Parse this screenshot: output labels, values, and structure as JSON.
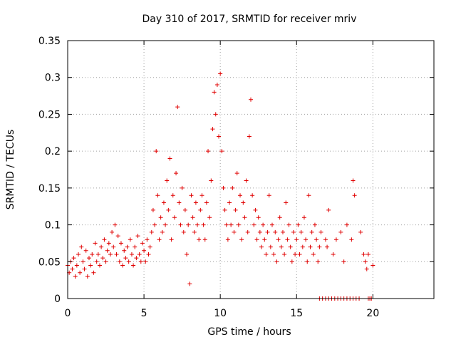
{
  "chart_data": {
    "type": "scatter",
    "title": "Day 310 of 2017, SRMTID for receiver mriv",
    "xlabel": "GPS time / hours",
    "ylabel": "SRMTID / TECUs",
    "xlim": [
      0,
      24
    ],
    "ylim": [
      0,
      0.35
    ],
    "xticks": [
      0,
      5,
      10,
      15,
      20
    ],
    "yticks": [
      0,
      0.05,
      0.1,
      0.15,
      0.2,
      0.25,
      0.3,
      0.35
    ],
    "xtick_labels": [
      "0",
      "5",
      "10",
      "15",
      "20"
    ],
    "ytick_labels": [
      "0",
      "0.05",
      "0.1",
      "0.15",
      "0.2",
      "0.25",
      "0.3",
      "0.35"
    ],
    "grid": true,
    "marker": "+",
    "series": [
      {
        "color": "#e00000",
        "points": [
          [
            0.0,
            0.045
          ],
          [
            0.1,
            0.035
          ],
          [
            0.2,
            0.05
          ],
          [
            0.3,
            0.04
          ],
          [
            0.4,
            0.055
          ],
          [
            0.5,
            0.03
          ],
          [
            0.6,
            0.045
          ],
          [
            0.7,
            0.06
          ],
          [
            0.8,
            0.035
          ],
          [
            0.9,
            0.07
          ],
          [
            1.0,
            0.05
          ],
          [
            1.1,
            0.04
          ],
          [
            1.2,
            0.065
          ],
          [
            1.3,
            0.03
          ],
          [
            1.4,
            0.055
          ],
          [
            1.5,
            0.045
          ],
          [
            1.6,
            0.06
          ],
          [
            1.7,
            0.035
          ],
          [
            1.8,
            0.075
          ],
          [
            1.9,
            0.05
          ],
          [
            2.0,
            0.06
          ],
          [
            2.1,
            0.045
          ],
          [
            2.2,
            0.07
          ],
          [
            2.3,
            0.055
          ],
          [
            2.4,
            0.08
          ],
          [
            2.5,
            0.05
          ],
          [
            2.6,
            0.065
          ],
          [
            2.7,
            0.075
          ],
          [
            2.8,
            0.06
          ],
          [
            2.9,
            0.09
          ],
          [
            3.0,
            0.07
          ],
          [
            3.1,
            0.1
          ],
          [
            3.2,
            0.06
          ],
          [
            3.3,
            0.085
          ],
          [
            3.4,
            0.05
          ],
          [
            3.5,
            0.075
          ],
          [
            3.6,
            0.045
          ],
          [
            3.7,
            0.065
          ],
          [
            3.8,
            0.055
          ],
          [
            3.9,
            0.07
          ],
          [
            4.0,
            0.05
          ],
          [
            4.1,
            0.08
          ],
          [
            4.2,
            0.06
          ],
          [
            4.3,
            0.045
          ],
          [
            4.4,
            0.07
          ],
          [
            4.5,
            0.055
          ],
          [
            4.6,
            0.085
          ],
          [
            4.7,
            0.06
          ],
          [
            4.8,
            0.05
          ],
          [
            4.9,
            0.075
          ],
          [
            5.0,
            0.065
          ],
          [
            5.1,
            0.05
          ],
          [
            5.2,
            0.08
          ],
          [
            5.3,
            0.06
          ],
          [
            5.4,
            0.07
          ],
          [
            5.5,
            0.09
          ],
          [
            5.6,
            0.12
          ],
          [
            5.7,
            0.1
          ],
          [
            5.8,
            0.2
          ],
          [
            5.9,
            0.14
          ],
          [
            6.0,
            0.08
          ],
          [
            6.1,
            0.11
          ],
          [
            6.2,
            0.09
          ],
          [
            6.3,
            0.13
          ],
          [
            6.4,
            0.1
          ],
          [
            6.5,
            0.16
          ],
          [
            6.6,
            0.12
          ],
          [
            6.7,
            0.19
          ],
          [
            6.8,
            0.08
          ],
          [
            6.9,
            0.14
          ],
          [
            7.0,
            0.11
          ],
          [
            7.1,
            0.17
          ],
          [
            7.2,
            0.26
          ],
          [
            7.3,
            0.13
          ],
          [
            7.4,
            0.1
          ],
          [
            7.5,
            0.15
          ],
          [
            7.6,
            0.09
          ],
          [
            7.7,
            0.12
          ],
          [
            7.8,
            0.06
          ],
          [
            7.9,
            0.1
          ],
          [
            8.0,
            0.02
          ],
          [
            8.1,
            0.14
          ],
          [
            8.2,
            0.11
          ],
          [
            8.3,
            0.09
          ],
          [
            8.4,
            0.13
          ],
          [
            8.5,
            0.1
          ],
          [
            8.6,
            0.08
          ],
          [
            8.7,
            0.12
          ],
          [
            8.8,
            0.14
          ],
          [
            8.9,
            0.1
          ],
          [
            9.0,
            0.08
          ],
          [
            9.1,
            0.13
          ],
          [
            9.2,
            0.2
          ],
          [
            9.3,
            0.11
          ],
          [
            9.4,
            0.16
          ],
          [
            9.5,
            0.23
          ],
          [
            9.6,
            0.28
          ],
          [
            9.7,
            0.25
          ],
          [
            9.8,
            0.29
          ],
          [
            9.9,
            0.22
          ],
          [
            10.0,
            0.305
          ],
          [
            10.1,
            0.2
          ],
          [
            10.2,
            0.15
          ],
          [
            10.3,
            0.12
          ],
          [
            10.4,
            0.1
          ],
          [
            10.5,
            0.08
          ],
          [
            10.6,
            0.13
          ],
          [
            10.7,
            0.1
          ],
          [
            10.8,
            0.15
          ],
          [
            10.9,
            0.09
          ],
          [
            11.0,
            0.12
          ],
          [
            11.1,
            0.17
          ],
          [
            11.2,
            0.1
          ],
          [
            11.3,
            0.14
          ],
          [
            11.4,
            0.08
          ],
          [
            11.5,
            0.13
          ],
          [
            11.6,
            0.11
          ],
          [
            11.7,
            0.16
          ],
          [
            11.8,
            0.09
          ],
          [
            11.9,
            0.22
          ],
          [
            12.0,
            0.27
          ],
          [
            12.1,
            0.14
          ],
          [
            12.2,
            0.1
          ],
          [
            12.3,
            0.12
          ],
          [
            12.4,
            0.08
          ],
          [
            12.5,
            0.11
          ],
          [
            12.6,
            0.09
          ],
          [
            12.7,
            0.07
          ],
          [
            12.8,
            0.1
          ],
          [
            12.9,
            0.08
          ],
          [
            13.0,
            0.06
          ],
          [
            13.1,
            0.09
          ],
          [
            13.2,
            0.14
          ],
          [
            13.3,
            0.07
          ],
          [
            13.4,
            0.1
          ],
          [
            13.5,
            0.06
          ],
          [
            13.6,
            0.09
          ],
          [
            13.7,
            0.05
          ],
          [
            13.8,
            0.08
          ],
          [
            13.9,
            0.11
          ],
          [
            14.0,
            0.07
          ],
          [
            14.1,
            0.09
          ],
          [
            14.2,
            0.06
          ],
          [
            14.3,
            0.13
          ],
          [
            14.4,
            0.08
          ],
          [
            14.5,
            0.1
          ],
          [
            14.6,
            0.07
          ],
          [
            14.7,
            0.05
          ],
          [
            14.8,
            0.09
          ],
          [
            14.9,
            0.06
          ],
          [
            15.0,
            0.08
          ],
          [
            15.1,
            0.1
          ],
          [
            15.2,
            0.06
          ],
          [
            15.3,
            0.09
          ],
          [
            15.4,
            0.07
          ],
          [
            15.5,
            0.11
          ],
          [
            15.6,
            0.08
          ],
          [
            15.7,
            0.05
          ],
          [
            15.8,
            0.14
          ],
          [
            15.9,
            0.07
          ],
          [
            16.0,
            0.09
          ],
          [
            16.1,
            0.06
          ],
          [
            16.2,
            0.1
          ],
          [
            16.3,
            0.08
          ],
          [
            16.4,
            0.05
          ],
          [
            16.5,
            0.07
          ],
          [
            16.6,
            0.09
          ],
          [
            16.9,
            0.08
          ],
          [
            17.0,
            0.07
          ],
          [
            17.1,
            0.12
          ],
          [
            17.4,
            0.06
          ],
          [
            17.6,
            0.08
          ],
          [
            17.9,
            0.09
          ],
          [
            18.1,
            0.05
          ],
          [
            18.3,
            0.1
          ],
          [
            18.6,
            0.08
          ],
          [
            18.7,
            0.16
          ],
          [
            18.8,
            0.14
          ],
          [
            19.2,
            0.09
          ],
          [
            19.4,
            0.06
          ],
          [
            19.5,
            0.05
          ],
          [
            19.6,
            0.04
          ],
          [
            19.7,
            0.06
          ],
          [
            20.0,
            0.045
          ]
        ]
      }
    ],
    "zero_points_x": [
      16.5,
      16.7,
      16.9,
      17.1,
      17.3,
      17.5,
      17.7,
      17.9,
      18.1,
      18.3,
      18.5,
      18.7,
      18.9,
      19.1,
      19.7,
      19.8,
      19.9
    ]
  }
}
